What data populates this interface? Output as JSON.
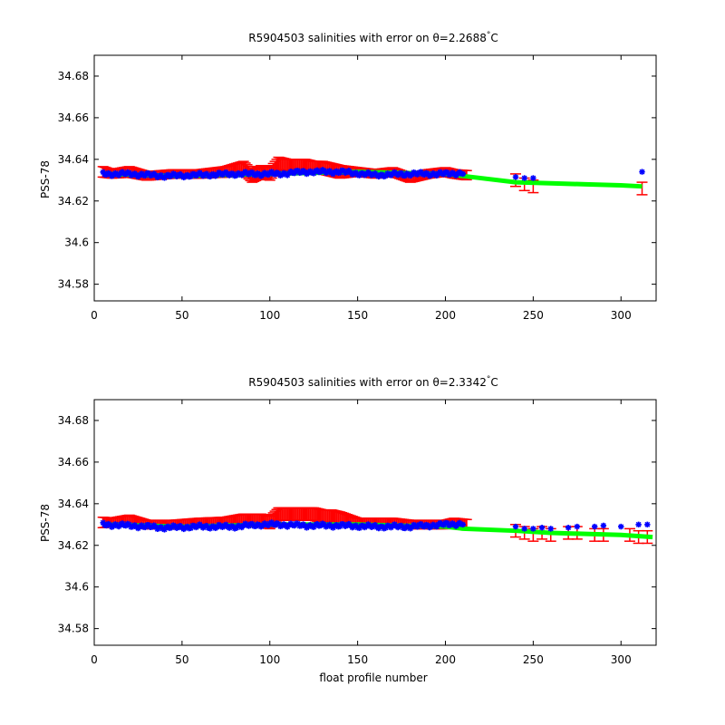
{
  "figure": {
    "xlabel": "float profile number"
  },
  "colors": {
    "error_bar": "#ff0000",
    "calibrated": "#0000ff",
    "fit_line": "#00ff00",
    "axes": "#000000"
  },
  "chart_data": [
    {
      "type": "scatter",
      "title_prefix": "R5904503 salinities with error on θ=2.2688",
      "title_suffix": "C",
      "degree_mark": "°",
      "xlabel": "",
      "ylabel": "PSS-78",
      "xlim": [
        0,
        320
      ],
      "ylim": [
        34.572,
        34.69
      ],
      "xticks": [
        0,
        50,
        100,
        150,
        200,
        250,
        300
      ],
      "yticks": [
        34.58,
        34.6,
        34.62,
        34.64,
        34.66,
        34.68
      ],
      "ytick_labels": [
        "34.58",
        "34.6",
        "34.62",
        "34.64",
        "34.66",
        "34.68"
      ],
      "grid": false,
      "series": [
        {
          "role": "error_bars",
          "profiles": [
            5,
            10,
            20,
            30,
            45,
            60,
            75,
            85,
            90,
            95,
            100,
            105,
            110,
            115,
            120,
            125,
            130,
            135,
            140,
            150,
            160,
            170,
            180,
            190,
            200,
            205,
            240,
            245,
            250,
            312
          ],
          "values": [
            34.634,
            34.633,
            34.634,
            34.632,
            34.633,
            34.633,
            34.634,
            34.636,
            34.632,
            34.634,
            34.633,
            34.638,
            34.637,
            34.637,
            34.637,
            34.636,
            34.636,
            34.635,
            34.634,
            34.634,
            34.633,
            34.634,
            34.631,
            34.633,
            34.634,
            34.633,
            34.63,
            34.628,
            34.627,
            34.626
          ],
          "errors": [
            0.0025,
            0.002,
            0.0025,
            0.002,
            0.002,
            0.002,
            0.0025,
            0.003,
            0.003,
            0.003,
            0.003,
            0.003,
            0.003,
            0.003,
            0.003,
            0.003,
            0.003,
            0.003,
            0.003,
            0.002,
            0.002,
            0.002,
            0.002,
            0.002,
            0.002,
            0.002,
            0.003,
            0.003,
            0.003,
            0.003
          ]
        },
        {
          "role": "fit_line",
          "x": [
            5,
            50,
            100,
            150,
            200,
            210,
            240,
            260,
            280,
            300,
            312
          ],
          "y": [
            34.633,
            34.632,
            34.633,
            34.634,
            34.633,
            34.632,
            34.629,
            34.6285,
            34.628,
            34.6275,
            34.627
          ]
        },
        {
          "role": "calibrated_points",
          "anchors_x": [
            5,
            20,
            40,
            60,
            80,
            95,
            105,
            120,
            140,
            160,
            180,
            200,
            210
          ],
          "anchors_y": [
            34.633,
            34.633,
            34.632,
            34.6325,
            34.633,
            34.633,
            34.633,
            34.634,
            34.634,
            34.6325,
            34.633,
            34.633,
            34.6335
          ],
          "extra_x": [
            240,
            245,
            250,
            312
          ],
          "extra_y": [
            34.6315,
            34.631,
            34.631,
            34.634
          ]
        }
      ]
    },
    {
      "type": "scatter",
      "title_prefix": "R5904503 salinities with error on θ=2.3342",
      "title_suffix": "C",
      "degree_mark": "°",
      "xlabel": "float profile number",
      "ylabel": "PSS-78",
      "xlim": [
        0,
        320
      ],
      "ylim": [
        34.572,
        34.69
      ],
      "xticks": [
        0,
        50,
        100,
        150,
        200,
        250,
        300
      ],
      "yticks": [
        34.58,
        34.6,
        34.62,
        34.64,
        34.66,
        34.68
      ],
      "ytick_labels": [
        "34.58",
        "34.6",
        "34.62",
        "34.64",
        "34.66",
        "34.68"
      ],
      "grid": false,
      "series": [
        {
          "role": "error_bars",
          "profiles": [
            5,
            10,
            20,
            30,
            45,
            60,
            75,
            85,
            90,
            95,
            100,
            105,
            110,
            115,
            120,
            125,
            130,
            135,
            140,
            150,
            160,
            170,
            180,
            190,
            200,
            205,
            240,
            245,
            250,
            255,
            260,
            270,
            275,
            285,
            290,
            305,
            310,
            315
          ],
          "values": [
            34.631,
            34.631,
            34.632,
            34.63,
            34.63,
            34.631,
            34.631,
            34.632,
            34.632,
            34.632,
            34.631,
            34.635,
            34.635,
            34.635,
            34.635,
            34.635,
            34.634,
            34.634,
            34.633,
            34.631,
            34.631,
            34.631,
            34.63,
            34.63,
            34.63,
            34.631,
            34.627,
            34.626,
            34.625,
            34.626,
            34.625,
            34.626,
            34.626,
            34.625,
            34.625,
            34.625,
            34.624,
            34.624
          ],
          "errors": [
            0.0025,
            0.002,
            0.0025,
            0.002,
            0.002,
            0.002,
            0.0025,
            0.003,
            0.003,
            0.003,
            0.003,
            0.003,
            0.003,
            0.003,
            0.003,
            0.003,
            0.003,
            0.003,
            0.003,
            0.002,
            0.002,
            0.002,
            0.002,
            0.002,
            0.002,
            0.002,
            0.003,
            0.003,
            0.003,
            0.003,
            0.003,
            0.003,
            0.003,
            0.003,
            0.003,
            0.003,
            0.003,
            0.003
          ]
        },
        {
          "role": "fit_line",
          "x": [
            5,
            50,
            100,
            150,
            200,
            210,
            240,
            260,
            280,
            300,
            318
          ],
          "y": [
            34.63,
            34.629,
            34.63,
            34.63,
            34.629,
            34.628,
            34.627,
            34.626,
            34.6255,
            34.625,
            34.624
          ]
        },
        {
          "role": "calibrated_points",
          "anchors_x": [
            5,
            20,
            40,
            60,
            80,
            95,
            105,
            120,
            140,
            160,
            180,
            200,
            210
          ],
          "anchors_y": [
            34.63,
            34.6295,
            34.6285,
            34.629,
            34.629,
            34.63,
            34.63,
            34.6295,
            34.6295,
            34.629,
            34.629,
            34.63,
            34.6305
          ],
          "extra_x": [
            240,
            245,
            250,
            255,
            260,
            270,
            275,
            285,
            290,
            300,
            310,
            315
          ],
          "extra_y": [
            34.629,
            34.628,
            34.628,
            34.6285,
            34.628,
            34.6285,
            34.629,
            34.629,
            34.6295,
            34.629,
            34.63,
            34.63
          ]
        }
      ]
    }
  ]
}
